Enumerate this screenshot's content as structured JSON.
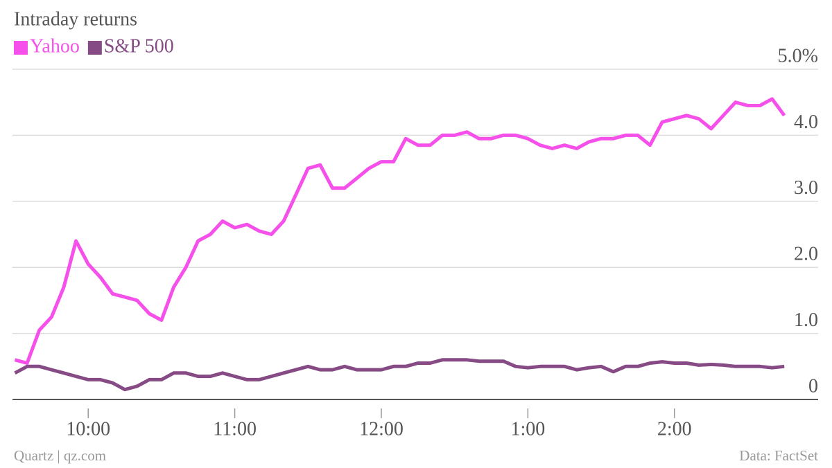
{
  "chart_data": {
    "type": "line",
    "title": "Intraday returns",
    "source_left": "Quartz | qz.com",
    "source_right": "Data: FactSet",
    "x": [
      570,
      575,
      580,
      585,
      590,
      595,
      600,
      605,
      610,
      615,
      620,
      625,
      630,
      635,
      640,
      645,
      650,
      655,
      660,
      665,
      670,
      675,
      680,
      685,
      690,
      695,
      700,
      705,
      710,
      715,
      720,
      725,
      730,
      735,
      740,
      745,
      750,
      755,
      760,
      765,
      770,
      775,
      780,
      785,
      790,
      795,
      800,
      805,
      810,
      815,
      820,
      825,
      830,
      835,
      840,
      845,
      850,
      855,
      860,
      865,
      870,
      875,
      880,
      885
    ],
    "series": [
      {
        "name": "Yahoo",
        "color": "#f550ea",
        "values": [
          0.6,
          0.55,
          1.05,
          1.25,
          1.7,
          2.4,
          2.05,
          1.85,
          1.6,
          1.55,
          1.5,
          1.3,
          1.2,
          1.7,
          2.0,
          2.4,
          2.5,
          2.7,
          2.6,
          2.65,
          2.55,
          2.5,
          2.7,
          3.1,
          3.5,
          3.55,
          3.2,
          3.2,
          3.35,
          3.5,
          3.6,
          3.6,
          3.95,
          3.85,
          3.85,
          4.0,
          4.0,
          4.05,
          3.95,
          3.95,
          4.0,
          4.0,
          3.95,
          3.85,
          3.8,
          3.85,
          3.8,
          3.9,
          3.95,
          3.95,
          4.0,
          4.0,
          3.85,
          4.2,
          4.25,
          4.3,
          4.25,
          4.1,
          4.3,
          4.5,
          4.45,
          4.45,
          4.55,
          4.3
        ]
      },
      {
        "name": "S&P 500",
        "color": "#864b85",
        "values": [
          0.4,
          0.5,
          0.5,
          0.45,
          0.4,
          0.35,
          0.3,
          0.3,
          0.25,
          0.15,
          0.2,
          0.3,
          0.3,
          0.4,
          0.4,
          0.35,
          0.35,
          0.4,
          0.35,
          0.3,
          0.3,
          0.35,
          0.4,
          0.45,
          0.5,
          0.45,
          0.45,
          0.5,
          0.45,
          0.45,
          0.45,
          0.5,
          0.5,
          0.55,
          0.55,
          0.6,
          0.6,
          0.6,
          0.58,
          0.58,
          0.58,
          0.5,
          0.48,
          0.5,
          0.5,
          0.5,
          0.45,
          0.48,
          0.5,
          0.42,
          0.5,
          0.5,
          0.55,
          0.57,
          0.55,
          0.55,
          0.52,
          0.53,
          0.52,
          0.5,
          0.5,
          0.5,
          0.48,
          0.5
        ]
      }
    ],
    "xlim": [
      569,
      896
    ],
    "xticks": [
      {
        "value": 600,
        "label": "10:00"
      },
      {
        "value": 660,
        "label": "11:00"
      },
      {
        "value": 720,
        "label": "12:00"
      },
      {
        "value": 780,
        "label": "1:00"
      },
      {
        "value": 840,
        "label": "2:00"
      }
    ],
    "ylim": [
      0,
      5
    ],
    "yticks": [
      0,
      {
        "value": 1,
        "label": "1.0"
      },
      {
        "value": 2,
        "label": "2.0"
      },
      {
        "value": 3,
        "label": "3.0"
      },
      {
        "value": 4,
        "label": "4.0"
      },
      {
        "value": 5,
        "label": "5.0%"
      }
    ],
    "grid": true
  }
}
